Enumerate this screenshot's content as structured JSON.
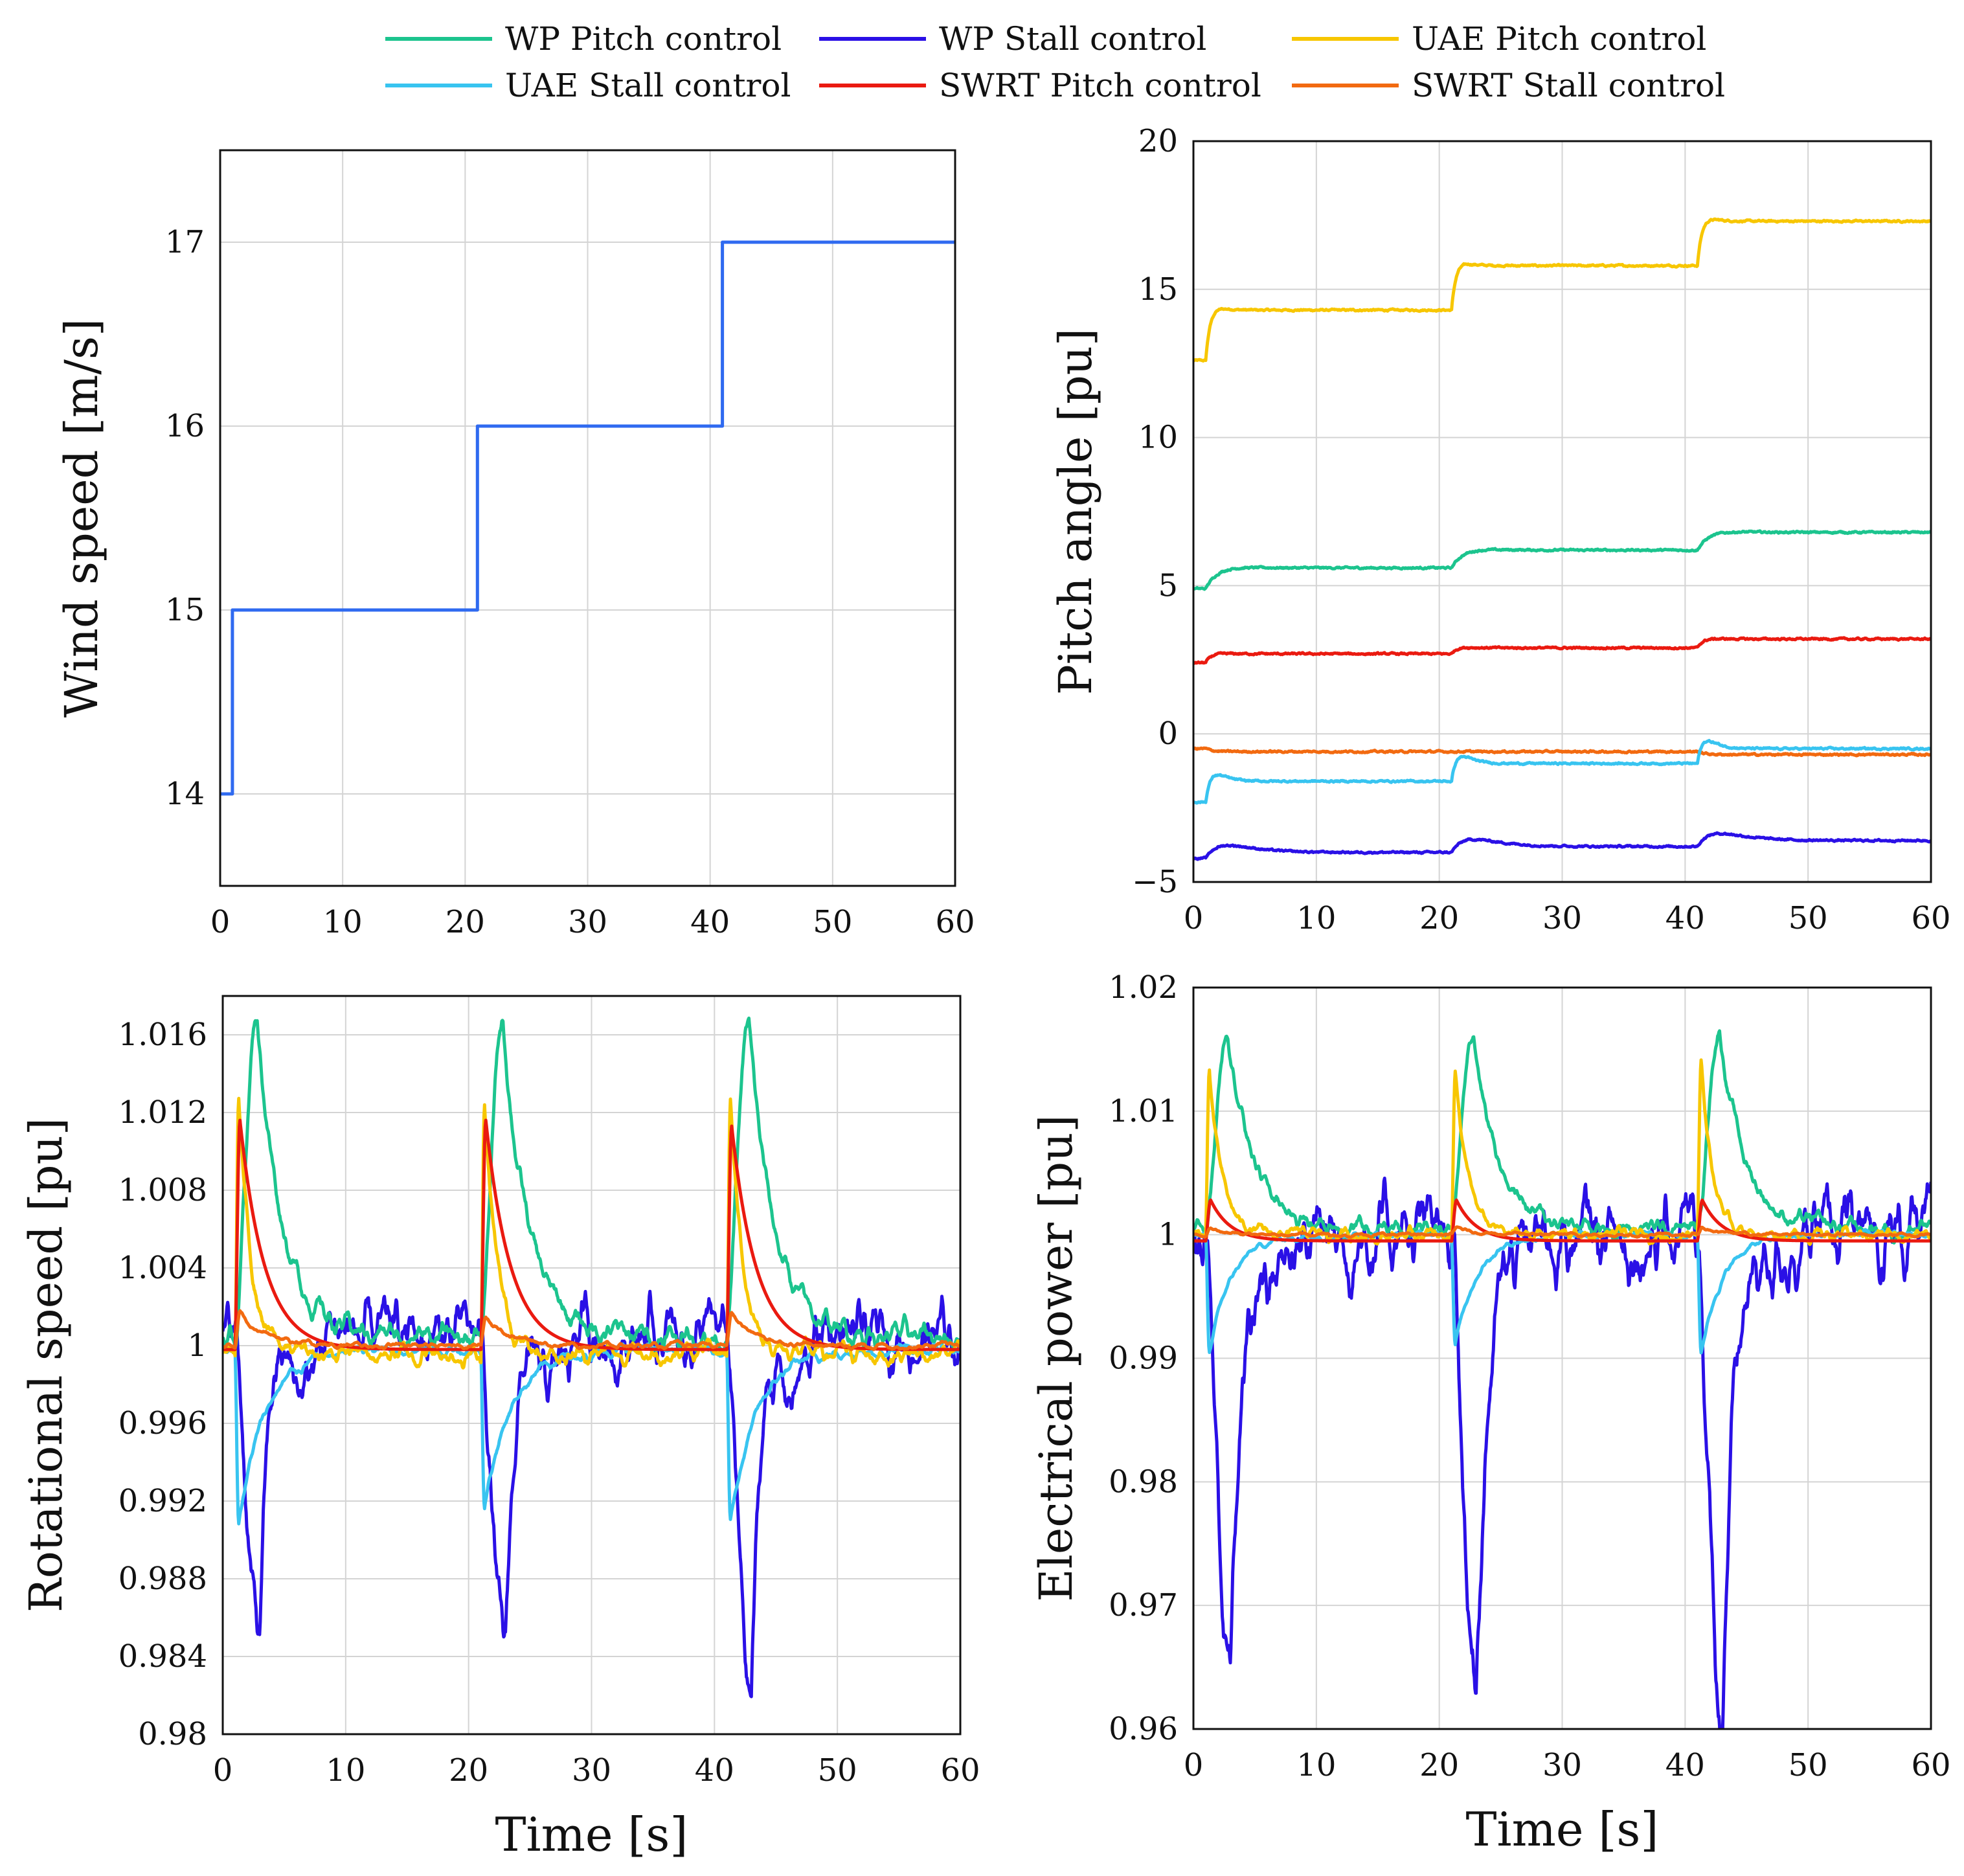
{
  "legend": {
    "entries": [
      {
        "label": "WP Pitch control",
        "color": "#1cc48e"
      },
      {
        "label": "WP Stall control",
        "color": "#2a10e6"
      },
      {
        "label": "UAE Pitch control",
        "color": "#f7c600"
      },
      {
        "label": "UAE Stall control",
        "color": "#38c4f0"
      },
      {
        "label": "SWRT Pitch control",
        "color": "#ea1a10"
      },
      {
        "label": "SWRT Stall control",
        "color": "#f26a10"
      }
    ]
  },
  "chart_data": [
    {
      "id": "wind",
      "type": "line",
      "ylabel": "Wind speed [m/s]",
      "xlabel": "",
      "xlim": [
        0,
        60
      ],
      "ylim": [
        13.5,
        17.5
      ],
      "xticks": [
        0,
        10,
        20,
        30,
        40,
        50,
        60
      ],
      "xtick_labels": [
        "0",
        "10",
        "20",
        "30",
        "40",
        "50",
        "60"
      ],
      "yticks": [
        14,
        15,
        16,
        17
      ],
      "ytick_labels": [
        "14",
        "15",
        "16",
        "17"
      ],
      "grid": true,
      "series": [
        {
          "name": "Wind speed",
          "color": "#2f6af0",
          "style": "step",
          "x": [
            0,
            1,
            1,
            21,
            21,
            41,
            41,
            60
          ],
          "y": [
            14,
            14,
            15,
            15,
            16,
            16,
            17,
            17
          ]
        }
      ]
    },
    {
      "id": "pitch",
      "type": "line",
      "ylabel": "Pitch angle [pu]",
      "xlabel": "",
      "xlim": [
        0,
        60
      ],
      "ylim": [
        -5,
        20
      ],
      "xticks": [
        0,
        10,
        20,
        30,
        40,
        50,
        60
      ],
      "xtick_labels": [
        "0",
        "10",
        "20",
        "30",
        "40",
        "50",
        "60"
      ],
      "yticks": [
        -5,
        0,
        5,
        10,
        15,
        20
      ],
      "ytick_labels": [
        "−5",
        "0",
        "5",
        "10",
        "15",
        "20"
      ],
      "grid": true,
      "series": [
        {
          "name": "UAE Pitch control",
          "color": "#f7c600",
          "levels": [
            12.6,
            14.3,
            15.8,
            17.3
          ],
          "overshoot": 0.3,
          "tau": 0.5
        },
        {
          "name": "WP Pitch control",
          "color": "#1cc48e",
          "levels": [
            4.9,
            5.6,
            6.2,
            6.8
          ],
          "overshoot": 0.1,
          "tau": 1.2
        },
        {
          "name": "SWRT Pitch control",
          "color": "#ea1a10",
          "levels": [
            2.4,
            2.7,
            2.9,
            3.2
          ],
          "overshoot": 0.05,
          "tau": 0.6
        },
        {
          "name": "SWRT Stall control",
          "color": "#f26a10",
          "levels": [
            -0.5,
            -0.6,
            -0.6,
            -0.7
          ],
          "overshoot": 0.0,
          "tau": 0.6
        },
        {
          "name": "UAE Stall control",
          "color": "#38c4f0",
          "levels": [
            -2.3,
            -1.6,
            -1.0,
            -0.5
          ],
          "overshoot": 0.4,
          "tau": 0.6
        },
        {
          "name": "WP Stall control",
          "color": "#2a10e6",
          "levels": [
            -4.2,
            -4.0,
            -3.8,
            -3.6
          ],
          "overshoot": 0.3,
          "tau": 1.5
        }
      ]
    },
    {
      "id": "rot",
      "type": "line",
      "ylabel": "Rotational speed [pu]",
      "xlabel": "Time [s]",
      "xlim": [
        0,
        60
      ],
      "ylim": [
        0.98,
        1.018
      ],
      "xticks": [
        0,
        10,
        20,
        30,
        40,
        50,
        60
      ],
      "xtick_labels": [
        "0",
        "10",
        "20",
        "30",
        "40",
        "50",
        "60"
      ],
      "yticks": [
        0.98,
        0.984,
        0.988,
        0.992,
        0.996,
        1,
        1.004,
        1.008,
        1.012,
        1.016
      ],
      "ytick_labels": [
        "0.98",
        "0.984",
        "0.988",
        "0.992",
        "0.996",
        "1",
        "1.004",
        "1.008",
        "1.012",
        "1.016"
      ],
      "grid": true,
      "step_times": [
        1,
        21,
        41
      ],
      "series": [
        {
          "name": "WP Stall control",
          "color": "#2a10e6",
          "base": 1.0005,
          "peaks": [
            -0.0155,
            -0.0165,
            -0.0185
          ],
          "peak_delay": 2.0,
          "rise": 1.2,
          "decay": 1.3,
          "rebound": 0.006,
          "noise": 0.0012
        },
        {
          "name": "WP Pitch control",
          "color": "#1cc48e",
          "base": 1.0005,
          "peaks": [
            0.0165,
            0.0162,
            0.016
          ],
          "peak_delay": 1.8,
          "rise": 1.0,
          "decay": 2.0,
          "rebound": 0.0,
          "noise": 0.0005
        },
        {
          "name": "UAE Stall control",
          "color": "#38c4f0",
          "base": 0.9998,
          "peaks": [
            -0.0088,
            -0.008,
            -0.0088
          ],
          "peak_delay": 0.3,
          "rise": 0.15,
          "decay": 2.2,
          "rebound": 0.0,
          "noise": 0.0002
        },
        {
          "name": "UAE Pitch control",
          "color": "#f7c600",
          "base": 0.9996,
          "peaks": [
            0.0132,
            0.013,
            0.0132
          ],
          "peak_delay": 0.3,
          "rise": 0.1,
          "decay": 1.0,
          "rebound": 0.0,
          "noise": 0.0004
        },
        {
          "name": "SWRT Pitch control",
          "color": "#ea1a10",
          "base": 0.9998,
          "peaks": [
            0.0118,
            0.0118,
            0.0115
          ],
          "peak_delay": 0.4,
          "rise": 0.15,
          "decay": 2.0,
          "rebound": 0.0,
          "noise": 0.0
        },
        {
          "name": "SWRT Stall control",
          "color": "#f26a10",
          "base": 1.0,
          "peaks": [
            0.0018,
            0.0015,
            0.0016
          ],
          "peak_delay": 0.4,
          "rise": 0.15,
          "decay": 2.0,
          "rebound": 0.0,
          "noise": 0.0001
        }
      ]
    },
    {
      "id": "power",
      "type": "line",
      "ylabel": "Electrical power [pu]",
      "xlabel": "Time [s]",
      "xlim": [
        0,
        60
      ],
      "ylim": [
        0.96,
        1.02
      ],
      "xticks": [
        0,
        10,
        20,
        30,
        40,
        50,
        60
      ],
      "xtick_labels": [
        "0",
        "10",
        "20",
        "30",
        "40",
        "50",
        "60"
      ],
      "yticks": [
        0.96,
        0.97,
        0.98,
        0.99,
        1,
        1.01,
        1.02
      ],
      "ytick_labels": [
        "0.96",
        "0.97",
        "0.98",
        "0.99",
        "1",
        "1.01",
        "1.02"
      ],
      "grid": true,
      "step_times": [
        1,
        21,
        41
      ],
      "series": [
        {
          "name": "WP Stall control",
          "color": "#2a10e6",
          "base": 1.0,
          "peaks": [
            -0.0355,
            -0.0355,
            -0.039
          ],
          "peak_delay": 2.0,
          "rise": 1.0,
          "decay": 1.1,
          "rebound": 0.002,
          "noise": 0.0025
        },
        {
          "name": "WP Pitch control",
          "color": "#1cc48e",
          "base": 1.0005,
          "peaks": [
            0.0165,
            0.0162,
            0.0162
          ],
          "peak_delay": 1.8,
          "rise": 1.0,
          "decay": 2.0,
          "rebound": 0.0,
          "noise": 0.0006
        },
        {
          "name": "UAE Stall control",
          "color": "#38c4f0",
          "base": 1.0,
          "peaks": [
            -0.0095,
            -0.0088,
            -0.0095
          ],
          "peak_delay": 0.3,
          "rise": 0.15,
          "decay": 1.8,
          "rebound": 0.0,
          "noise": 0.0002
        },
        {
          "name": "UAE Pitch control",
          "color": "#f7c600",
          "base": 1.0,
          "peaks": [
            0.0133,
            0.0133,
            0.0136
          ],
          "peak_delay": 0.3,
          "rise": 0.1,
          "decay": 1.0,
          "rebound": 0.0,
          "noise": 0.0004
        },
        {
          "name": "SWRT Pitch control",
          "color": "#ea1a10",
          "base": 0.9995,
          "peaks": [
            0.0033,
            0.0033,
            0.0033
          ],
          "peak_delay": 0.4,
          "rise": 0.15,
          "decay": 1.6,
          "rebound": 0.0,
          "noise": 0.0
        },
        {
          "name": "SWRT Stall control",
          "color": "#f26a10",
          "base": 1.0,
          "peaks": [
            0.0005,
            0.0005,
            0.0005
          ],
          "peak_delay": 0.4,
          "rise": 0.15,
          "decay": 2.0,
          "rebound": 0.0,
          "noise": 0.0001
        }
      ]
    }
  ]
}
